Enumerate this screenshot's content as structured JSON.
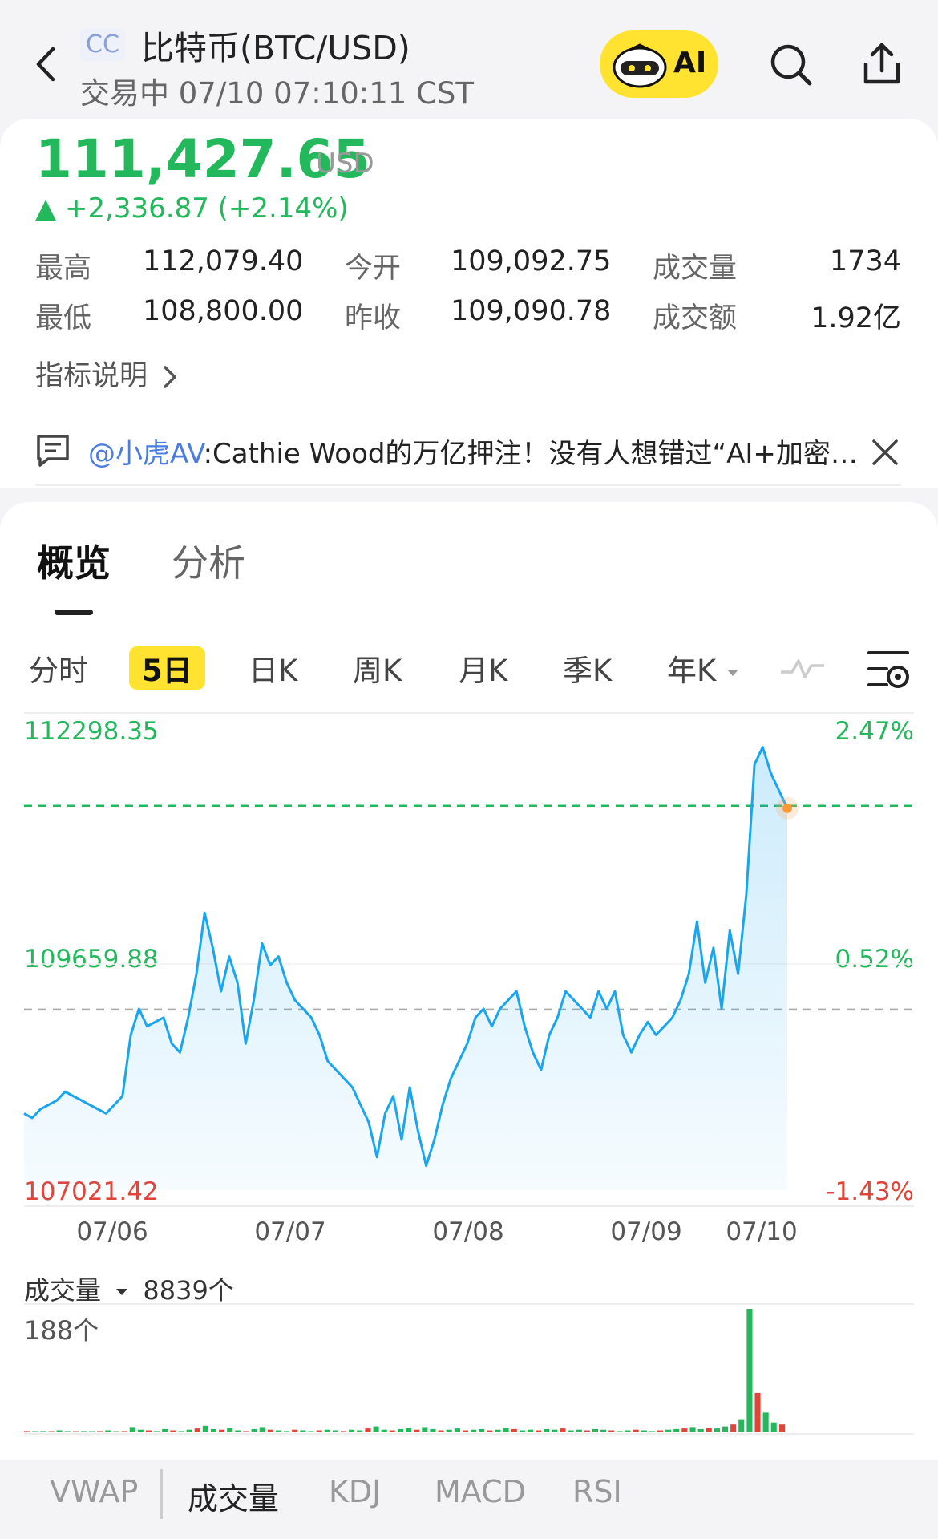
{
  "header": {
    "exchange_badge": "CC",
    "title": "比特币(BTC/USD)",
    "status": "交易中 07/10 07:10:11 CST",
    "ai_label": "AI",
    "icons": [
      "back-icon",
      "ai-mascot-icon",
      "search-icon",
      "share-icon"
    ]
  },
  "quote": {
    "price": "111,427.65",
    "unit": "USD",
    "change": "▲ +2,336.87 (+2.14%)",
    "stats": [
      {
        "label": "最高",
        "value": "112,079.40"
      },
      {
        "label": "今开",
        "value": "109,092.75"
      },
      {
        "label": "成交量",
        "value": "1734"
      },
      {
        "label": "最低",
        "value": "108,800.00"
      },
      {
        "label": "昨收",
        "value": "109,090.78"
      },
      {
        "label": "成交额",
        "value": "1.92亿"
      }
    ],
    "indicator_link": "指标说明"
  },
  "news": {
    "user": "@小虎AV",
    "text": ":Cathie Wood的万亿押注！没有人想错过“AI+加密…"
  },
  "tabs": {
    "overview": "概览",
    "analysis": "分析"
  },
  "periods": [
    "分时",
    "5日",
    "日K",
    "周K",
    "月K",
    "季K",
    "年K"
  ],
  "period_selected": "5日",
  "colors": {
    "up": "#23b85c",
    "down": "#e0453a",
    "line": "#1aa6ef",
    "accent": "#ffe330"
  },
  "chart_data": {
    "type": "line",
    "y_labels_left": [
      "112298.35",
      "109659.88",
      "107021.42"
    ],
    "y_labels_right": [
      "2.47%",
      "0.52%",
      "-1.43%"
    ],
    "ylim": [
      107021.42,
      112298.35
    ],
    "x_labels": [
      "07/06",
      "07/07",
      "07/08",
      "07/09",
      "07/10"
    ],
    "reference_price": 109090.78,
    "current_price": 111427.65,
    "series": [
      {
        "values": [
          107900,
          107850,
          107950,
          108000,
          108050,
          108150,
          108100,
          108050,
          108000,
          107950,
          107900,
          108000,
          108100,
          108800,
          109100,
          108900,
          108950,
          109000,
          108700,
          108600,
          109000,
          109500,
          110200,
          109800,
          109300,
          109700,
          109400,
          108700,
          109200,
          109850,
          109600,
          109700,
          109400,
          109200,
          109100,
          109000,
          108800,
          108500,
          108400,
          108300,
          108200,
          108000,
          107800,
          107400,
          107900,
          108100,
          107600,
          108200,
          107700,
          107300,
          107600,
          108000,
          108300,
          108500,
          108700,
          109000,
          109100,
          108900,
          109100,
          109200,
          109300,
          108900,
          108600,
          108400,
          108800,
          109000,
          109300,
          109200,
          109100,
          109000,
          109300,
          109100,
          109300,
          108800,
          108600,
          108800,
          108950,
          108800,
          108900,
          109000,
          109200,
          109500,
          110100,
          109400,
          109800,
          109100,
          110000,
          109500,
          110400,
          111900,
          112100,
          111800,
          111600,
          111400
        ]
      }
    ],
    "volume": {
      "label": "成交量",
      "total": "8839个",
      "max_label": "188个",
      "values": [
        2,
        1,
        2,
        1,
        3,
        2,
        1,
        2,
        1,
        2,
        3,
        1,
        2,
        8,
        4,
        3,
        2,
        5,
        3,
        2,
        4,
        6,
        10,
        5,
        4,
        7,
        3,
        2,
        5,
        8,
        4,
        3,
        2,
        4,
        3,
        2,
        3,
        4,
        3,
        2,
        4,
        3,
        6,
        9,
        4,
        3,
        5,
        7,
        4,
        8,
        5,
        3,
        4,
        6,
        3,
        4,
        5,
        3,
        4,
        7,
        5,
        3,
        4,
        3,
        5,
        4,
        6,
        3,
        4,
        3,
        5,
        4,
        3,
        2,
        3,
        4,
        3,
        2,
        3,
        4,
        5,
        6,
        8,
        5,
        7,
        6,
        9,
        12,
        20,
        188,
        60,
        30,
        15,
        12
      ]
    }
  },
  "indicator_tabs": [
    "VWAP",
    "成交量",
    "KDJ",
    "MACD",
    "RSI"
  ],
  "indicator_selected": "成交量"
}
